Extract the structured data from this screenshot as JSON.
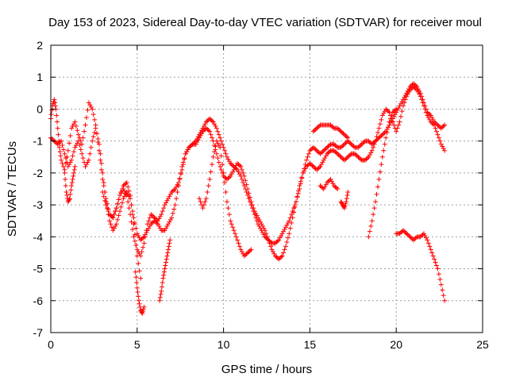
{
  "chart_data": {
    "type": "scatter",
    "title": "Day 153 of 2023, Sidereal Day-to-day VTEC variation (SDTVAR) for receiver moul",
    "xlabel": "GPS time / hours",
    "ylabel": "SDTVAR / TECUs",
    "xlim": [
      0,
      25
    ],
    "ylim": [
      -7,
      2
    ],
    "xticks": [
      0,
      5,
      10,
      15,
      20,
      25
    ],
    "yticks": [
      -7,
      -6,
      -5,
      -4,
      -3,
      -2,
      -1,
      0,
      1,
      2
    ],
    "grid": true,
    "marker": "+",
    "color": "#ff0000",
    "series": [
      {
        "name": "trace-a",
        "x": [
          0.0,
          0.1,
          0.2,
          0.3,
          0.4,
          0.5,
          0.6,
          0.8,
          1.0,
          1.2,
          1.4,
          1.6,
          1.8,
          2.0,
          2.2,
          2.4,
          2.6,
          2.8,
          3.0,
          3.2,
          3.4,
          3.6,
          3.8,
          4.0,
          4.2,
          4.4,
          4.6,
          4.8,
          5.0,
          5.2,
          5.4,
          5.6,
          5.8,
          6.0,
          6.2,
          6.4,
          6.6,
          6.8,
          7.0,
          7.2,
          7.4,
          7.6,
          7.8,
          8.0,
          8.2,
          8.4,
          8.6,
          8.8,
          9.0,
          9.2,
          9.4,
          9.6,
          9.8,
          10.0,
          10.2,
          10.4,
          10.6,
          10.8,
          11.0,
          11.2,
          11.4,
          11.6,
          11.8,
          12.0,
          12.2,
          12.4,
          12.6,
          12.8,
          13.0,
          13.2,
          13.4,
          13.6,
          13.8,
          14.0,
          14.2,
          14.4,
          14.6,
          14.8,
          15.0,
          15.2,
          15.4,
          15.6,
          15.8,
          16.0,
          16.2,
          16.4,
          16.6,
          16.8,
          17.0,
          17.2,
          17.4,
          17.6,
          17.8,
          18.0,
          18.2,
          18.4,
          18.6,
          18.8,
          19.0,
          19.2,
          19.4,
          19.6,
          19.8,
          20.0,
          20.2,
          20.4,
          20.6,
          20.8,
          21.0,
          21.2,
          21.4,
          21.6,
          21.8,
          22.0,
          22.2,
          22.4,
          22.6,
          22.8
        ],
        "y": [
          -0.3,
          0.1,
          0.3,
          0.0,
          -0.6,
          -1.2,
          -1.6,
          -1.9,
          -1.3,
          -0.6,
          -0.4,
          -0.8,
          -1.1,
          -0.5,
          0.2,
          0.0,
          -0.5,
          -1.3,
          -2.2,
          -2.8,
          -3.3,
          -3.4,
          -3.1,
          -2.7,
          -2.5,
          -2.7,
          -3.3,
          -4.0,
          -4.4,
          -4.6,
          -4.2,
          -3.6,
          -3.3,
          -3.4,
          -3.5,
          -3.3,
          -3.0,
          -2.8,
          -2.6,
          -2.5,
          -2.3,
          -1.9,
          -1.4,
          -1.2,
          -1.1,
          -1.0,
          -0.8,
          -0.6,
          -0.4,
          -0.3,
          -0.4,
          -0.6,
          -0.9,
          -1.2,
          -1.5,
          -1.7,
          -1.8,
          -1.9,
          -2.1,
          -2.4,
          -2.7,
          -3.0,
          -3.3,
          -3.6,
          -3.8,
          -4.0,
          -4.1,
          -4.2,
          -4.2,
          -4.1,
          -3.9,
          -3.7,
          -3.5,
          -3.2,
          -2.9,
          -2.5,
          -2.0,
          -1.6,
          -1.3,
          -1.2,
          -1.3,
          -1.4,
          -1.3,
          -1.2,
          -1.1,
          -1.1,
          -1.2,
          -1.2,
          -1.1,
          -1.0,
          -1.1,
          -1.2,
          -1.2,
          -1.1,
          -1.0,
          -1.0,
          -1.1,
          -1.0,
          -0.9,
          -0.8,
          -0.7,
          -0.5,
          -0.3,
          -0.1,
          0.1,
          0.3,
          0.5,
          0.7,
          0.8,
          0.7,
          0.5,
          0.2,
          -0.1,
          -0.2,
          -0.4,
          -0.5,
          -0.6,
          -0.5
        ]
      },
      {
        "name": "trace-b",
        "x": [
          0.0,
          0.2,
          0.4,
          0.6,
          0.8,
          1.0,
          1.2,
          1.4,
          1.6,
          1.8,
          2.0,
          2.2,
          2.4,
          2.6,
          2.8,
          3.0,
          3.2,
          3.4,
          3.6,
          3.8,
          4.0,
          4.2,
          4.4,
          4.6,
          4.8,
          5.0,
          5.2,
          5.4,
          5.6,
          5.8,
          6.0,
          6.2,
          6.4,
          6.6,
          6.8,
          7.0,
          7.2,
          7.4,
          7.6,
          7.8,
          8.0,
          8.2,
          8.4,
          8.6,
          8.8,
          9.0,
          9.2,
          9.4,
          9.6,
          9.8,
          10.0,
          10.2,
          10.4,
          10.6,
          10.8,
          11.0,
          11.2,
          11.4,
          11.6,
          11.8,
          12.0,
          12.2,
          12.4,
          12.6,
          12.8,
          13.0,
          13.2,
          13.4,
          13.6,
          13.8,
          14.0,
          14.2,
          14.4,
          14.6,
          14.8,
          15.0,
          15.2,
          15.4,
          15.6,
          15.8,
          16.0,
          16.2,
          16.4,
          16.6,
          16.8,
          17.0,
          17.2,
          17.4,
          17.6,
          17.8,
          18.0,
          18.2,
          18.4,
          18.6,
          18.8,
          19.0,
          19.2,
          19.4,
          19.6,
          19.8,
          20.0,
          20.2,
          20.4,
          20.6,
          20.8,
          21.0,
          21.2,
          21.4,
          21.6,
          21.8,
          22.0,
          22.2,
          22.4,
          22.6,
          22.8
        ],
        "y": [
          -0.9,
          -1.0,
          -1.1,
          -1.0,
          -1.4,
          -1.8,
          -1.6,
          -1.2,
          -1.0,
          -1.4,
          -1.8,
          -1.6,
          -1.0,
          -0.6,
          -1.1,
          -2.0,
          -2.9,
          -3.5,
          -3.8,
          -3.6,
          -3.2,
          -2.8,
          -2.6,
          -2.8,
          -3.4,
          -3.9,
          -4.1,
          -4.0,
          -3.8,
          -3.6,
          -3.5,
          -3.6,
          -3.8,
          -3.8,
          -3.6,
          -3.4,
          -3.0,
          -2.4,
          -1.8,
          -1.4,
          -1.2,
          -1.1,
          -1.1,
          -0.9,
          -0.7,
          -0.6,
          -0.7,
          -1.0,
          -1.4,
          -1.8,
          -2.1,
          -2.2,
          -2.1,
          -1.9,
          -1.7,
          -1.8,
          -2.1,
          -2.5,
          -2.9,
          -3.2,
          -3.4,
          -3.6,
          -3.8,
          -4.1,
          -4.4,
          -4.6,
          -4.7,
          -4.6,
          -4.3,
          -3.9,
          -3.4,
          -2.9,
          -2.4,
          -2.0,
          -1.8,
          -1.7,
          -1.8,
          -1.9,
          -1.8,
          -1.6,
          -1.4,
          -1.3,
          -1.3,
          -1.4,
          -1.5,
          -1.6,
          -1.5,
          -1.4,
          -1.4,
          -1.5,
          -1.6,
          -1.6,
          -1.5,
          -1.3,
          -1.0,
          -0.6,
          -0.2,
          0.0,
          -0.1,
          -0.4,
          -0.7,
          -0.4,
          0.1,
          0.4,
          0.6,
          0.7,
          0.6,
          0.4,
          0.1,
          -0.2,
          -0.4,
          -0.5,
          -0.8,
          -1.1,
          -1.3
        ]
      },
      {
        "name": "trace-c",
        "x": [
          0.8,
          0.9,
          1.0,
          1.1,
          1.2,
          1.3,
          1.4
        ],
        "y": [
          -2.0,
          -2.6,
          -2.9,
          -2.8,
          -2.4,
          -2.1,
          -1.8
        ]
      },
      {
        "name": "trace-d",
        "x": [
          3.0,
          3.2,
          3.4,
          3.6,
          3.8,
          4.0,
          4.2,
          4.4,
          4.6,
          4.8,
          5.0,
          5.2
        ],
        "y": [
          -2.6,
          -3.0,
          -3.3,
          -3.4,
          -3.1,
          -2.7,
          -2.4,
          -2.3,
          -2.7,
          -3.6,
          -4.6,
          -5.3
        ]
      },
      {
        "name": "trace-e",
        "x": [
          4.9,
          5.0,
          5.1,
          5.2,
          5.3,
          5.4
        ],
        "y": [
          -5.1,
          -5.6,
          -6.0,
          -6.3,
          -6.4,
          -6.2
        ]
      },
      {
        "name": "trace-f",
        "x": [
          6.3,
          6.4,
          6.5,
          6.6,
          6.7,
          6.8,
          6.9
        ],
        "y": [
          -6.0,
          -5.7,
          -5.3,
          -5.0,
          -4.7,
          -4.4,
          -4.1
        ]
      },
      {
        "name": "trace-g",
        "x": [
          8.6,
          8.8,
          9.0,
          9.2,
          9.4,
          9.6,
          9.8,
          10.0,
          10.2,
          10.4,
          10.6,
          10.8,
          11.0,
          11.2,
          11.4,
          11.6
        ],
        "y": [
          -2.8,
          -3.1,
          -2.8,
          -2.2,
          -1.5,
          -1.0,
          -1.2,
          -2.0,
          -2.9,
          -3.5,
          -3.8,
          -4.1,
          -4.4,
          -4.6,
          -4.5,
          -4.4
        ]
      },
      {
        "name": "trace-h",
        "x": [
          15.2,
          15.4,
          15.6,
          15.8,
          16.0,
          16.2,
          16.4,
          16.6,
          16.8,
          17.0,
          17.2
        ],
        "y": [
          -0.7,
          -0.6,
          -0.5,
          -0.5,
          -0.5,
          -0.5,
          -0.6,
          -0.6,
          -0.7,
          -0.8,
          -0.9
        ]
      },
      {
        "name": "trace-i",
        "x": [
          15.6,
          15.8,
          16.0,
          16.2,
          16.4,
          16.6
        ],
        "y": [
          -2.4,
          -2.5,
          -2.3,
          -2.2,
          -2.4,
          -2.5
        ]
      },
      {
        "name": "trace-j",
        "x": [
          16.8,
          16.9,
          17.0,
          17.1,
          17.2
        ],
        "y": [
          -2.9,
          -3.0,
          -3.1,
          -2.9,
          -2.6
        ]
      },
      {
        "name": "trace-k",
        "x": [
          18.4,
          18.6,
          18.8,
          19.0,
          19.2,
          19.4,
          19.6,
          19.8,
          20.0
        ],
        "y": [
          -4.0,
          -3.5,
          -2.9,
          -2.2,
          -1.5,
          -0.9,
          -0.4,
          -0.1,
          0.0
        ]
      },
      {
        "name": "trace-l",
        "x": [
          20.0,
          20.2,
          20.4,
          20.6,
          20.8,
          21.0,
          21.2,
          21.4,
          21.6,
          21.8,
          22.0,
          22.2,
          22.4,
          22.6,
          22.8
        ],
        "y": [
          -3.9,
          -3.9,
          -3.8,
          -3.9,
          -4.0,
          -4.1,
          -4.0,
          -4.0,
          -3.9,
          -4.1,
          -4.4,
          -4.7,
          -5.0,
          -5.5,
          -6.0
        ]
      }
    ]
  }
}
